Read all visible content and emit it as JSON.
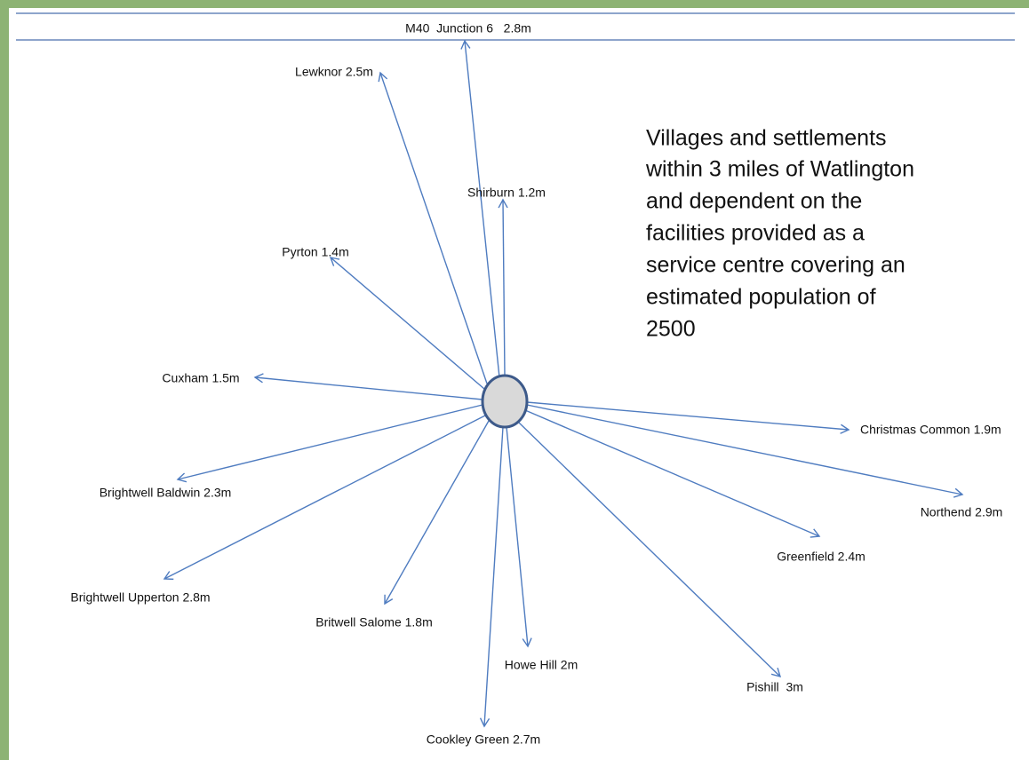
{
  "labels": [
    "M40  Junction 6   2.8m",
    "Lewknor 2.5m",
    "Shirburn 1.2m",
    "Pyrton 1.4m",
    "Cuxham 1.5m",
    "Christmas Common 1.9m",
    "Brightwell Baldwin 2.3m",
    "Northend 2.9m",
    "Greenfield 2.4m",
    "Brightwell Upperton 2.8m",
    "Britwell Salome 1.8m",
    "Howe Hill 2m",
    "Pishill  3m",
    "Cookley Green 2.7m"
  ],
  "description": [
    "Villages and settlements",
    "within 3 miles of Watlington",
    "and dependent on the",
    "facilities provided as a",
    "service centre covering an",
    "estimated population of",
    "2500"
  ]
}
